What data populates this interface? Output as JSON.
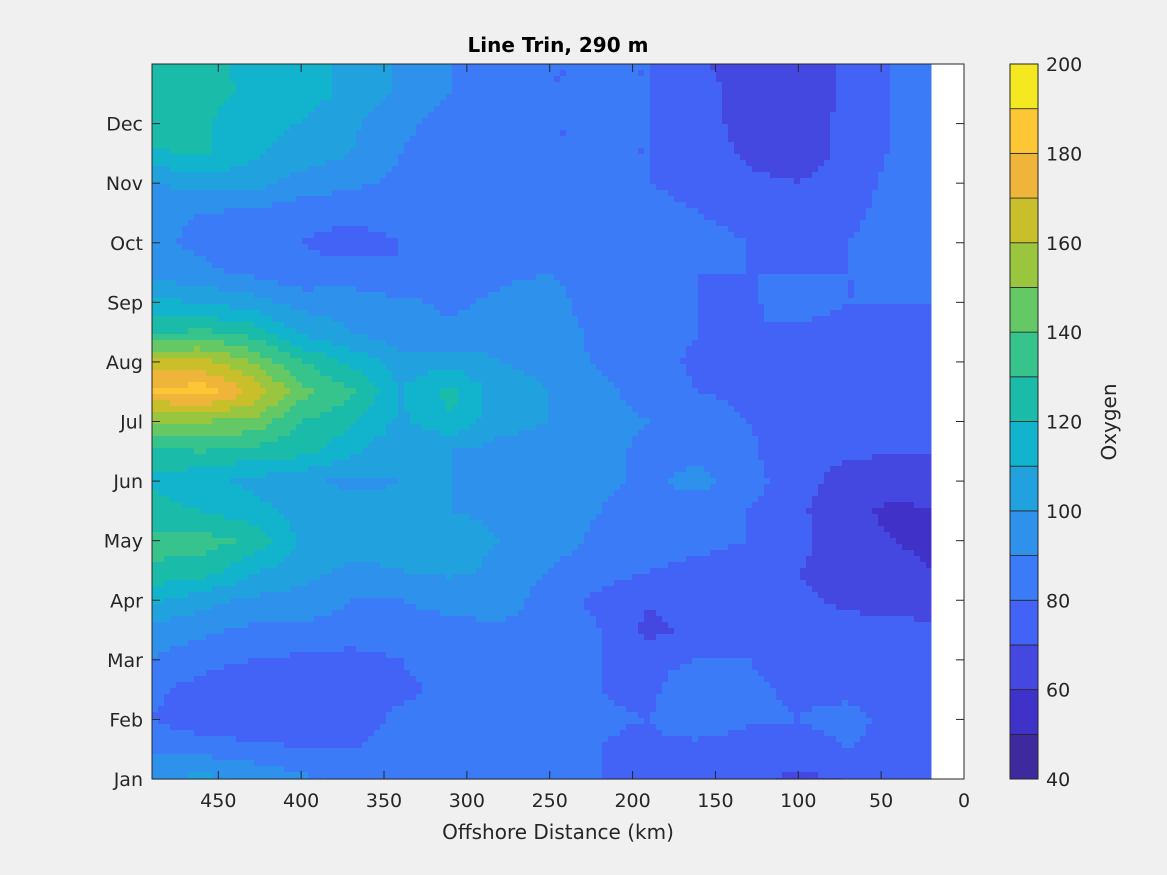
{
  "chart_data": {
    "type": "heatmap",
    "subtype": "filled-contour",
    "title": "Line Trin, 290 m",
    "xlabel": "Offshore Distance (km)",
    "ylabel": "",
    "colorbar_label": "Oxygen",
    "xlim": [
      490,
      0
    ],
    "x_reversed": true,
    "x_ticks": [
      450,
      400,
      350,
      300,
      250,
      200,
      150,
      100,
      50,
      0
    ],
    "x_tick_labels": [
      "450",
      "400",
      "350",
      "300",
      "250",
      "200",
      "150",
      "100",
      "50",
      "0"
    ],
    "ylim": [
      1,
      13
    ],
    "y_ticks": [
      1,
      2,
      3,
      4,
      5,
      6,
      7,
      8,
      9,
      10,
      11,
      12
    ],
    "y_tick_labels": [
      "Jan",
      "Feb",
      "Mar",
      "Apr",
      "May",
      "Jun",
      "Jul",
      "Aug",
      "Sep",
      "Oct",
      "Nov",
      "Dec"
    ],
    "data_x_extent": [
      490,
      20
    ],
    "colorbar": {
      "clim": [
        40,
        200
      ],
      "levels": [
        40,
        50,
        60,
        70,
        80,
        90,
        100,
        110,
        120,
        130,
        140,
        150,
        160,
        170,
        180,
        190,
        200
      ],
      "tick_values": [
        40,
        60,
        80,
        100,
        120,
        140,
        160,
        180,
        200
      ],
      "tick_labels": [
        "40",
        "60",
        "80",
        "100",
        "120",
        "140",
        "160",
        "180",
        "200"
      ],
      "colors": [
        "#3e2a9e",
        "#4031c8",
        "#4448e0",
        "#4263f5",
        "#3b7bf7",
        "#2e91ec",
        "#21a2de",
        "#12b3cd",
        "#1abba9",
        "#37c48c",
        "#64c865",
        "#9ac63f",
        "#c9bf2b",
        "#eeb53a",
        "#fcc634",
        "#f4e821"
      ]
    },
    "x": [
      490,
      460,
      430,
      400,
      370,
      340,
      310,
      280,
      250,
      220,
      190,
      160,
      130,
      100,
      70,
      40,
      20
    ],
    "y": [
      1,
      1.5,
      2,
      2.5,
      3,
      3.5,
      4,
      4.5,
      5,
      5.5,
      6,
      6.5,
      7,
      7.5,
      8,
      8.5,
      9,
      9.5,
      10,
      10.5,
      11,
      11.5,
      12,
      12.5,
      13
    ],
    "z": [
      [
        100,
        103,
        98,
        92,
        88,
        85,
        84,
        85,
        83,
        80,
        78,
        75,
        72,
        68,
        70,
        72,
        74
      ],
      [
        88,
        86,
        84,
        80,
        80,
        83,
        87,
        86,
        84,
        80,
        78,
        76,
        74,
        75,
        80,
        74,
        72
      ],
      [
        80,
        74,
        70,
        72,
        76,
        82,
        86,
        85,
        84,
        81,
        80,
        88,
        82,
        80,
        84,
        76,
        72
      ],
      [
        82,
        76,
        70,
        70,
        74,
        78,
        82,
        83,
        82,
        80,
        78,
        86,
        82,
        78,
        77,
        74,
        72
      ],
      [
        90,
        84,
        80,
        78,
        76,
        80,
        84,
        86,
        84,
        80,
        78,
        80,
        80,
        76,
        74,
        74,
        72
      ],
      [
        96,
        92,
        88,
        88,
        86,
        86,
        86,
        88,
        86,
        80,
        66,
        74,
        80,
        76,
        73,
        74,
        72
      ],
      [
        112,
        104,
        98,
        96,
        90,
        90,
        94,
        96,
        84,
        78,
        72,
        76,
        78,
        72,
        68,
        66,
        64
      ],
      [
        128,
        126,
        112,
        104,
        98,
        100,
        102,
        98,
        90,
        84,
        80,
        78,
        76,
        70,
        64,
        62,
        60
      ],
      [
        134,
        134,
        128,
        108,
        104,
        104,
        104,
        100,
        94,
        88,
        84,
        82,
        80,
        74,
        62,
        60,
        58
      ],
      [
        124,
        120,
        114,
        106,
        104,
        102,
        100,
        98,
        96,
        90,
        86,
        84,
        80,
        72,
        62,
        58,
        60
      ],
      [
        118,
        112,
        108,
        102,
        98,
        100,
        100,
        98,
        98,
        92,
        88,
        94,
        84,
        74,
        66,
        64,
        64
      ],
      [
        128,
        130,
        126,
        124,
        112,
        102,
        100,
        96,
        96,
        92,
        88,
        86,
        82,
        72,
        72,
        70,
        70
      ],
      [
        150,
        150,
        148,
        130,
        122,
        108,
        118,
        104,
        100,
        94,
        90,
        84,
        80,
        74,
        72,
        74,
        76
      ],
      [
        180,
        186,
        168,
        144,
        132,
        110,
        124,
        104,
        100,
        94,
        84,
        80,
        78,
        74,
        72,
        74,
        76
      ],
      [
        166,
        164,
        150,
        130,
        118,
        104,
        106,
        100,
        98,
        88,
        84,
        78,
        78,
        74,
        72,
        76,
        78
      ],
      [
        128,
        132,
        126,
        108,
        100,
        94,
        92,
        96,
        98,
        86,
        84,
        80,
        80,
        78,
        74,
        76,
        78
      ],
      [
        112,
        110,
        104,
        96,
        96,
        92,
        88,
        92,
        94,
        84,
        88,
        80,
        78,
        86,
        80,
        80,
        80
      ],
      [
        96,
        92,
        88,
        82,
        84,
        80,
        84,
        88,
        90,
        84,
        82,
        80,
        80,
        80,
        80,
        80,
        82
      ],
      [
        92,
        88,
        84,
        80,
        76,
        80,
        82,
        86,
        86,
        84,
        80,
        82,
        80,
        78,
        80,
        82,
        84
      ],
      [
        92,
        90,
        88,
        84,
        82,
        84,
        84,
        82,
        82,
        82,
        82,
        80,
        78,
        76,
        78,
        84,
        86
      ],
      [
        100,
        104,
        104,
        96,
        92,
        88,
        86,
        82,
        82,
        82,
        80,
        78,
        72,
        70,
        74,
        84,
        88
      ],
      [
        118,
        122,
        112,
        106,
        100,
        90,
        86,
        84,
        80,
        80,
        80,
        76,
        68,
        66,
        72,
        82,
        90
      ],
      [
        126,
        122,
        112,
        110,
        102,
        92,
        86,
        84,
        80,
        80,
        80,
        74,
        66,
        66,
        72,
        82,
        88
      ],
      [
        128,
        124,
        118,
        114,
        108,
        98,
        90,
        84,
        80,
        80,
        80,
        74,
        66,
        64,
        72,
        82,
        88
      ],
      [
        130,
        122,
        118,
        114,
        108,
        98,
        90,
        84,
        80,
        80,
        80,
        72,
        64,
        64,
        72,
        82,
        88
      ]
    ]
  }
}
